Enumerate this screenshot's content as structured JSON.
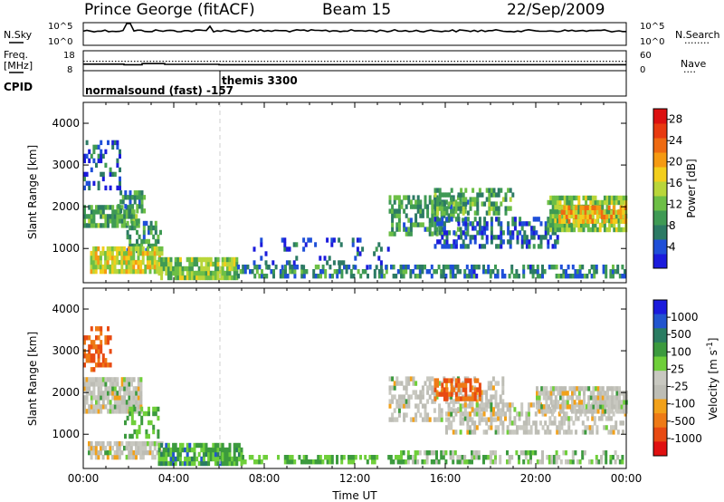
{
  "header": {
    "station": "Prince George (fitACF)",
    "beam": "Beam 15",
    "date": "22/Sep/2009"
  },
  "strip_labels": {
    "nsky": "N.Sky",
    "nsearch": "N.Search",
    "nsearch_dots": "........",
    "freq": "Freq.",
    "mhz": "[MHz]",
    "nave": "Nave",
    "nave_dots": "....",
    "cpid": "CPID"
  },
  "noise_strip": {
    "left_ticks": [
      "10^5",
      "10^0"
    ],
    "right_ticks": [
      "10^5",
      "10^0"
    ]
  },
  "freq_strip": {
    "left_ticks": [
      "18",
      "8"
    ],
    "right_ticks": [
      "60",
      "0"
    ],
    "freq_level_mhz": 10.8,
    "nave_level": 28
  },
  "cpid_strip": {
    "segments": [
      {
        "text": "normalsound (fast) -157",
        "start_hour": 0
      },
      {
        "text": "themis 3300",
        "start_hour": 6
      }
    ]
  },
  "colors": {
    "power_scale": [
      "#1b1bdc",
      "#1f4fd8",
      "#2c7a64",
      "#3f9a54",
      "#6dbf46",
      "#b9d63a",
      "#f2ce1c",
      "#f59a12",
      "#ee6a12",
      "#e83a10",
      "#dc1010"
    ],
    "velocity_scale": [
      "#1b1bdc",
      "#2255cf",
      "#2a7c62",
      "#3c9a3e",
      "#6fcf3a",
      "#c8c8c0",
      "#bdbdb5",
      "#f2a11a",
      "#ee7a16",
      "#e84a12",
      "#e01010"
    ]
  },
  "chart_data": [
    {
      "type": "heatmap",
      "name": "power",
      "xlabel": "",
      "ylabel": "Slant Range [km]",
      "xlim": [
        0,
        24
      ],
      "ylim": [
        180,
        4500
      ],
      "yticks": [
        "1000",
        "2000",
        "3000",
        "4000"
      ],
      "colorbar_label": "Power [dB]",
      "colorbar_ticks": [
        "4",
        "8",
        "12",
        "16",
        "20",
        "24",
        "28"
      ],
      "colorbar_range": [
        0,
        30
      ],
      "scatter_regions": [
        {
          "x": [
            0.0,
            1.6
          ],
          "y": [
            2400,
            3500
          ],
          "value": 5,
          "density": 0.35
        },
        {
          "x": [
            0.0,
            2.4
          ],
          "y": [
            1500,
            2000
          ],
          "value": 10,
          "density": 0.8
        },
        {
          "x": [
            1.5,
            2.7
          ],
          "y": [
            1850,
            2300
          ],
          "value": 8,
          "density": 0.65
        },
        {
          "x": [
            1.8,
            3.4
          ],
          "y": [
            900,
            1600
          ],
          "value": 9,
          "density": 0.45
        },
        {
          "x": [
            0.3,
            3.5
          ],
          "y": [
            400,
            1000
          ],
          "value": 16,
          "density": 0.85
        },
        {
          "x": [
            3.3,
            6.8
          ],
          "y": [
            250,
            700
          ],
          "value": 13,
          "density": 0.85
        },
        {
          "x": [
            6.8,
            14.0
          ],
          "y": [
            180,
            600
          ],
          "value": 8,
          "density": 0.5
        },
        {
          "x": [
            7.5,
            13.5
          ],
          "y": [
            500,
            1200
          ],
          "value": 4,
          "density": 0.12
        },
        {
          "x": [
            13.5,
            17.0
          ],
          "y": [
            1300,
            2200
          ],
          "value": 9,
          "density": 0.55
        },
        {
          "x": [
            15.5,
            19.0
          ],
          "y": [
            1800,
            2400
          ],
          "value": 10,
          "density": 0.5
        },
        {
          "x": [
            15.5,
            21.0
          ],
          "y": [
            1000,
            1700
          ],
          "value": 5,
          "density": 0.5
        },
        {
          "x": [
            14.0,
            24.0
          ],
          "y": [
            180,
            600
          ],
          "value": 7,
          "density": 0.55
        },
        {
          "x": [
            20.5,
            24.0
          ],
          "y": [
            1400,
            2200
          ],
          "value": 13,
          "density": 0.8
        },
        {
          "x": [
            21.0,
            24.0
          ],
          "y": [
            1600,
            1950
          ],
          "value": 20,
          "density": 0.75
        }
      ]
    },
    {
      "type": "heatmap",
      "name": "velocity",
      "xlabel": "Time UT",
      "ylabel": "Slant Range [km]",
      "xlim": [
        0,
        24
      ],
      "ylim": [
        180,
        4500
      ],
      "xticks": [
        "00:00",
        "04:00",
        "08:00",
        "12:00",
        "16:00",
        "20:00",
        "00:00"
      ],
      "yticks": [
        "1000",
        "2000",
        "3000",
        "4000"
      ],
      "colorbar_label": "Velocity [m s^-1]",
      "colorbar_ticks": [
        "1000",
        "500",
        "100",
        "25",
        "-25",
        "-100",
        "-500",
        "-1000"
      ],
      "scatter_regions": [
        {
          "x": [
            0.0,
            1.2
          ],
          "y": [
            2500,
            3500
          ],
          "value": -300,
          "density": 0.45
        },
        {
          "x": [
            0.0,
            2.6
          ],
          "y": [
            1500,
            2300
          ],
          "value": 0,
          "density": 0.85
        },
        {
          "x": [
            1.8,
            3.3
          ],
          "y": [
            900,
            1600
          ],
          "value": 60,
          "density": 0.45
        },
        {
          "x": [
            0.2,
            3.5
          ],
          "y": [
            400,
            800
          ],
          "value": 0,
          "density": 0.85
        },
        {
          "x": [
            3.3,
            7.0
          ],
          "y": [
            250,
            700
          ],
          "value": 80,
          "density": 0.8
        },
        {
          "x": [
            7.0,
            14.0
          ],
          "y": [
            180,
            500
          ],
          "value": 60,
          "density": 0.45
        },
        {
          "x": [
            13.5,
            18.5
          ],
          "y": [
            1300,
            2300
          ],
          "value": 0,
          "density": 0.5
        },
        {
          "x": [
            15.5,
            17.5
          ],
          "y": [
            1800,
            2300
          ],
          "value": -300,
          "density": 0.6
        },
        {
          "x": [
            16.0,
            24.0
          ],
          "y": [
            1000,
            1700
          ],
          "value": 0,
          "density": 0.45
        },
        {
          "x": [
            20.0,
            24.0
          ],
          "y": [
            1500,
            2100
          ],
          "value": 0,
          "density": 0.85
        },
        {
          "x": [
            14.0,
            24.0
          ],
          "y": [
            180,
            600
          ],
          "value": 30,
          "density": 0.5
        }
      ]
    }
  ]
}
